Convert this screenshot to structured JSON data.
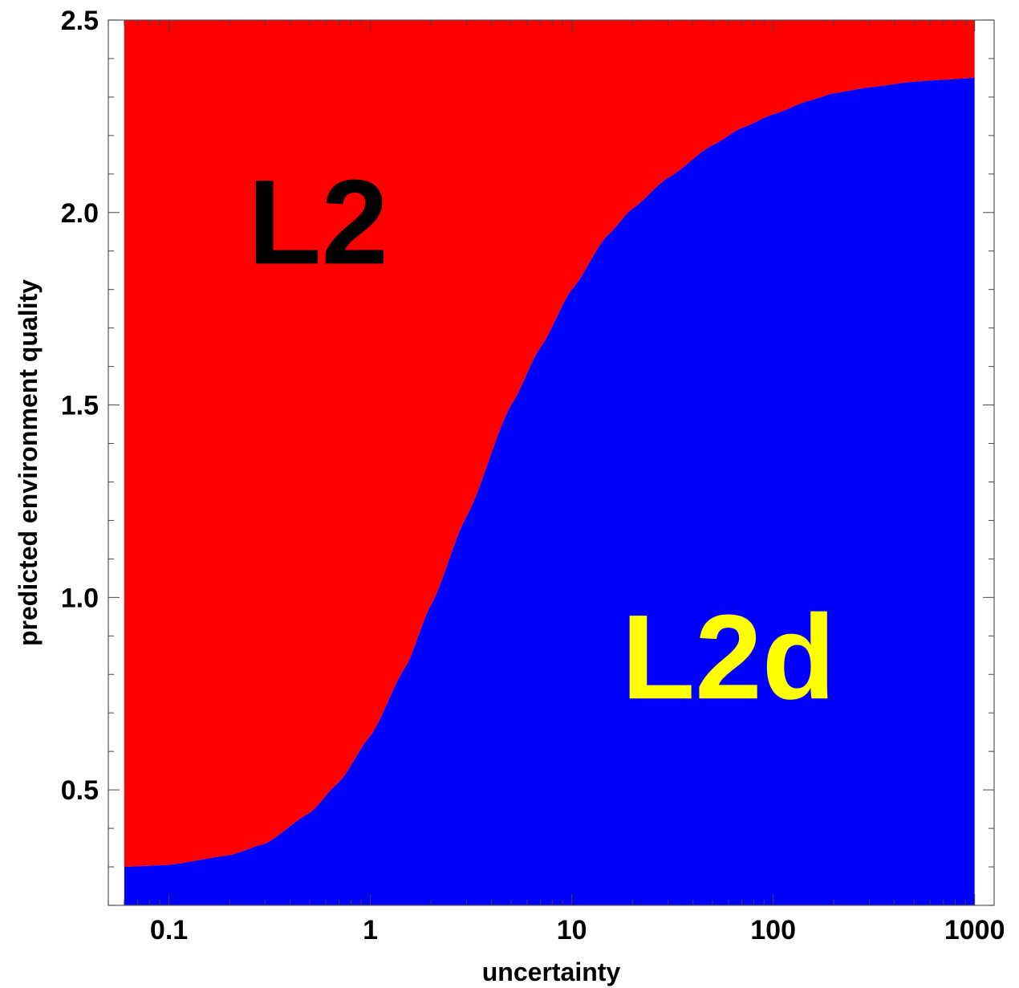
{
  "chart_data": {
    "type": "area",
    "xlabel": "uncertainty",
    "ylabel": "predicted environment quality",
    "xscale": "log",
    "xlim": [
      0.05,
      1250
    ],
    "ylim": [
      0.2,
      2.5
    ],
    "xdata_range": [
      0.06,
      1000
    ],
    "x_ticks": [
      {
        "value": 0.1,
        "label": "0.1"
      },
      {
        "value": 1,
        "label": "1"
      },
      {
        "value": 10,
        "label": "10"
      },
      {
        "value": 100,
        "label": "100"
      },
      {
        "value": 1000,
        "label": "1000"
      }
    ],
    "y_ticks": [
      {
        "value": 0.5,
        "label": "0.5"
      },
      {
        "value": 1.0,
        "label": "1.0"
      },
      {
        "value": 1.5,
        "label": "1.5"
      },
      {
        "value": 2.0,
        "label": "2.0"
      },
      {
        "value": 2.5,
        "label": "2.5"
      }
    ],
    "grid": false,
    "legend": "none",
    "boundary": {
      "x": [
        0.06,
        0.1,
        0.2,
        0.3,
        0.5,
        0.7,
        1,
        1.5,
        2,
        3,
        5,
        7,
        10,
        15,
        20,
        30,
        50,
        70,
        100,
        150,
        200,
        300,
        500,
        700,
        1000
      ],
      "y": [
        0.3,
        0.305,
        0.33,
        0.36,
        0.44,
        0.52,
        0.64,
        0.82,
        0.98,
        1.21,
        1.5,
        1.65,
        1.8,
        1.94,
        2.01,
        2.09,
        2.175,
        2.22,
        2.255,
        2.29,
        2.31,
        2.325,
        2.34,
        2.345,
        2.35
      ]
    },
    "regions": [
      {
        "name": "L2",
        "position": "above",
        "color": "#ff0000",
        "label_color": "#000000",
        "label_x": 0.55,
        "label_y": 1.95
      },
      {
        "name": "L2d",
        "position": "below",
        "color": "#0000ff",
        "label_color": "#ffff00",
        "label_x": 60,
        "label_y": 0.82
      }
    ]
  }
}
